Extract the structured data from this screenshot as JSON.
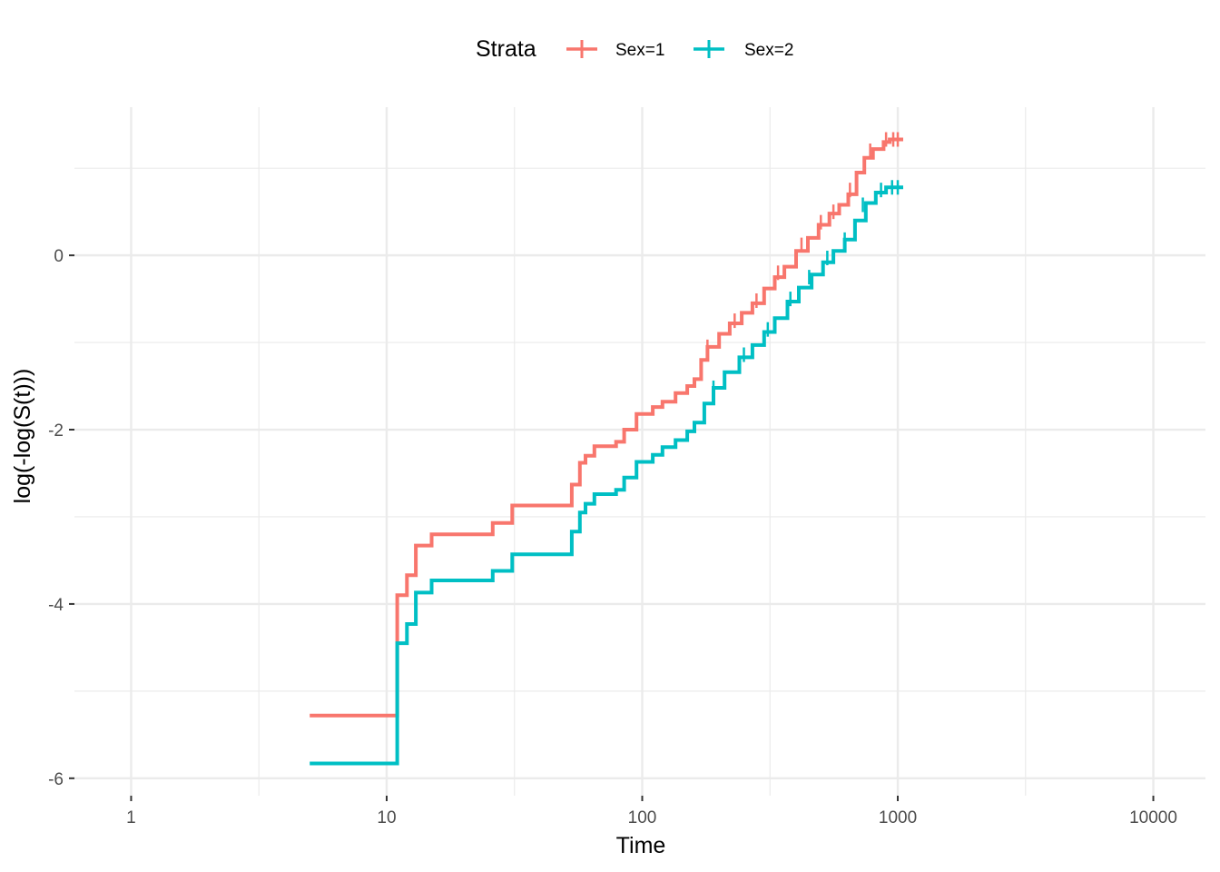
{
  "chart_data": {
    "type": "line",
    "step": true,
    "x_scale": "log10",
    "xlim": [
      0.6,
      16000
    ],
    "ylim": [
      -6.2,
      1.7
    ],
    "xlabel": "Time",
    "ylabel": "log(-log(S(t)))",
    "x_ticks": [
      {
        "value": 1,
        "label": "1"
      },
      {
        "value": 10,
        "label": "10"
      },
      {
        "value": 100,
        "label": "100"
      },
      {
        "value": 1000,
        "label": "1000"
      },
      {
        "value": 10000,
        "label": "10000"
      }
    ],
    "x_minor": [
      3.162,
      31.62,
      316.2,
      3162
    ],
    "y_ticks": [
      {
        "value": -6,
        "label": "-6"
      },
      {
        "value": -4,
        "label": "-4"
      },
      {
        "value": -2,
        "label": "-2"
      },
      {
        "value": 0,
        "label": "0"
      }
    ],
    "y_minor": [
      -5,
      -3,
      -1,
      1
    ],
    "grid": true,
    "legend": {
      "position": "top",
      "title": "Strata",
      "entries": [
        "Sex=1",
        "Sex=2"
      ]
    },
    "series": [
      {
        "name": "Sex=1",
        "color": "#F8766D",
        "points": [
          [
            5,
            -5.28
          ],
          [
            11,
            -3.9
          ],
          [
            12,
            -3.67
          ],
          [
            13,
            -3.33
          ],
          [
            15,
            -3.2
          ],
          [
            26,
            -3.07
          ],
          [
            31,
            -2.87
          ],
          [
            53,
            -2.63
          ],
          [
            57,
            -2.38
          ],
          [
            60,
            -2.3
          ],
          [
            65,
            -2.19
          ],
          [
            79,
            -2.14
          ],
          [
            85,
            -2.0
          ],
          [
            95,
            -1.82
          ],
          [
            110,
            -1.74
          ],
          [
            120,
            -1.68
          ],
          [
            135,
            -1.58
          ],
          [
            150,
            -1.5
          ],
          [
            160,
            -1.42
          ],
          [
            170,
            -1.2
          ],
          [
            180,
            -1.05
          ],
          [
            200,
            -0.9
          ],
          [
            220,
            -0.78
          ],
          [
            245,
            -0.66
          ],
          [
            270,
            -0.55
          ],
          [
            300,
            -0.38
          ],
          [
            330,
            -0.25
          ],
          [
            360,
            -0.13
          ],
          [
            400,
            0.05
          ],
          [
            445,
            0.2
          ],
          [
            490,
            0.35
          ],
          [
            540,
            0.48
          ],
          [
            590,
            0.58
          ],
          [
            640,
            0.7
          ],
          [
            690,
            0.95
          ],
          [
            740,
            1.12
          ],
          [
            800,
            1.22
          ],
          [
            880,
            1.3
          ],
          [
            930,
            1.33
          ],
          [
            1050,
            1.33
          ]
        ],
        "censor_ticks": [
          [
            180,
            -1.05
          ],
          [
            230,
            -0.75
          ],
          [
            280,
            -0.52
          ],
          [
            340,
            -0.2
          ],
          [
            420,
            0.12
          ],
          [
            500,
            0.38
          ],
          [
            560,
            0.5
          ],
          [
            650,
            0.75
          ],
          [
            780,
            1.2
          ],
          [
            900,
            1.33
          ],
          [
            960,
            1.33
          ],
          [
            1000,
            1.33
          ]
        ]
      },
      {
        "name": "Sex=2",
        "color": "#00BFC4",
        "points": [
          [
            5,
            -5.83
          ],
          [
            11,
            -4.45
          ],
          [
            12,
            -4.23
          ],
          [
            13,
            -3.87
          ],
          [
            15,
            -3.73
          ],
          [
            26,
            -3.62
          ],
          [
            31,
            -3.43
          ],
          [
            53,
            -3.17
          ],
          [
            57,
            -2.95
          ],
          [
            60,
            -2.85
          ],
          [
            65,
            -2.74
          ],
          [
            79,
            -2.69
          ],
          [
            85,
            -2.55
          ],
          [
            95,
            -2.37
          ],
          [
            110,
            -2.29
          ],
          [
            120,
            -2.2
          ],
          [
            135,
            -2.12
          ],
          [
            150,
            -2.02
          ],
          [
            160,
            -1.92
          ],
          [
            175,
            -1.7
          ],
          [
            190,
            -1.52
          ],
          [
            210,
            -1.34
          ],
          [
            240,
            -1.17
          ],
          [
            270,
            -1.03
          ],
          [
            300,
            -0.88
          ],
          [
            330,
            -0.72
          ],
          [
            370,
            -0.53
          ],
          [
            410,
            -0.37
          ],
          [
            460,
            -0.22
          ],
          [
            510,
            -0.08
          ],
          [
            560,
            0.05
          ],
          [
            620,
            0.18
          ],
          [
            680,
            0.4
          ],
          [
            750,
            0.6
          ],
          [
            820,
            0.72
          ],
          [
            900,
            0.78
          ],
          [
            1050,
            0.78
          ]
        ],
        "censor_ticks": [
          [
            190,
            -1.52
          ],
          [
            250,
            -1.14
          ],
          [
            310,
            -0.85
          ],
          [
            380,
            -0.5
          ],
          [
            450,
            -0.25
          ],
          [
            530,
            -0.03
          ],
          [
            620,
            0.18
          ],
          [
            730,
            0.58
          ],
          [
            860,
            0.75
          ],
          [
            950,
            0.78
          ],
          [
            1000,
            0.78
          ]
        ]
      }
    ]
  }
}
